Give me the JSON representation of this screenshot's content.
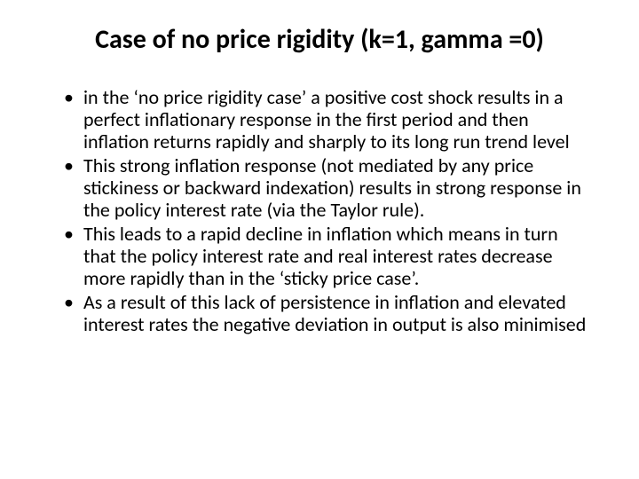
{
  "title": "Case of no price rigidity (k=1, gamma =0)",
  "bullets": [
    "in the ‘no price rigidity case’ a positive cost shock results in a perfect inflationary response in the first period and then inflation returns rapidly and sharply to its long run trend level",
    "This strong inflation response (not mediated by any price stickiness or backward indexation) results in strong response in the policy interest rate (via the Taylor rule).",
    "This leads to a rapid decline in inflation which means in turn that the policy interest rate and real interest rates decrease more rapidly than in the ‘sticky price case’.",
    "As a result of this lack of persistence in inflation and elevated interest rates the negative deviation in output is also minimised"
  ]
}
